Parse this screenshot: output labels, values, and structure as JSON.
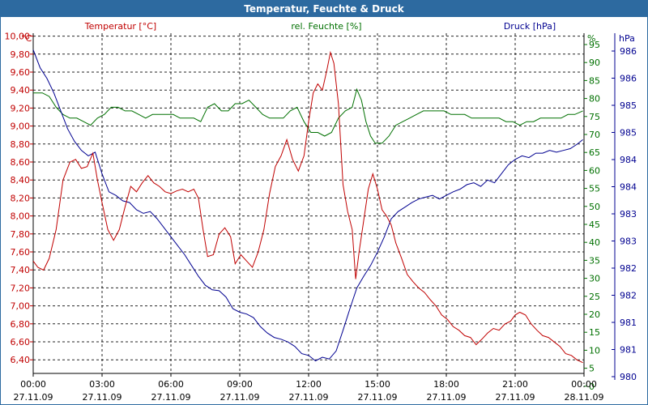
{
  "window": {
    "title": "Temperatur, Feuchte & Druck"
  },
  "chart_data": {
    "type": "line",
    "title": "Temperatur, Feuchte & Druck",
    "grid": true,
    "colors": {
      "temperature": "#c00000",
      "humidity": "#007000",
      "pressure": "#000090",
      "grid": "#000000",
      "title_bg": "#2d6aa0"
    },
    "x_ticks": [
      {
        "time": "00:00",
        "date": "27.11.09"
      },
      {
        "time": "03:00",
        "date": "27.11.09"
      },
      {
        "time": "06:00",
        "date": "27.11.09"
      },
      {
        "time": "09:00",
        "date": "27.11.09"
      },
      {
        "time": "12:00",
        "date": "27.11.09"
      },
      {
        "time": "15:00",
        "date": "27.11.09"
      },
      {
        "time": "18:00",
        "date": "27.11.09"
      },
      {
        "time": "21:00",
        "date": "27.11.09"
      },
      {
        "time": "00:00",
        "date": "28.11.09"
      }
    ],
    "xlim_hours": [
      0,
      24
    ],
    "axes": {
      "temperature": {
        "label": "Temperatur [°C]",
        "unit": "°C",
        "ylim": [
          6.4,
          10.0
        ],
        "ticks": [
          "10,00",
          "9,80",
          "9,60",
          "9,40",
          "9,20",
          "9,00",
          "8,80",
          "8,60",
          "8,40",
          "8,20",
          "8,00",
          "7,80",
          "7,60",
          "7,40",
          "7,20",
          "7,00",
          "6,80",
          "6,60",
          "6,40"
        ]
      },
      "humidity": {
        "label": "rel. Feuchte [%]",
        "unit": "%",
        "ylim": [
          0,
          97.5
        ],
        "ticks": [
          "95",
          "90",
          "85",
          "80",
          "75",
          "70",
          "65",
          "60",
          "55",
          "50",
          "45",
          "40",
          "35",
          "30",
          "25",
          "20",
          "15",
          "10",
          "5",
          "0"
        ]
      },
      "pressure": {
        "label": "Druck [hPa]",
        "unit": "hPa",
        "ticks": [
          "986",
          "986",
          "985",
          "985",
          "984",
          "984",
          "983",
          "983",
          "982",
          "982",
          "981",
          "981",
          "980"
        ]
      }
    },
    "series": [
      {
        "name": "Temperatur [°C]",
        "axis": "temperature",
        "points": [
          [
            0,
            7.65
          ],
          [
            0.2,
            7.58
          ],
          [
            0.45,
            7.55
          ],
          [
            0.7,
            7.68
          ],
          [
            1.0,
            8.0
          ],
          [
            1.3,
            8.55
          ],
          [
            1.6,
            8.75
          ],
          [
            1.85,
            8.78
          ],
          [
            2.1,
            8.68
          ],
          [
            2.35,
            8.7
          ],
          [
            2.6,
            8.85
          ],
          [
            2.8,
            8.55
          ],
          [
            3.0,
            8.3
          ],
          [
            3.25,
            8.0
          ],
          [
            3.5,
            7.88
          ],
          [
            3.75,
            8.0
          ],
          [
            4.0,
            8.25
          ],
          [
            4.25,
            8.48
          ],
          [
            4.5,
            8.42
          ],
          [
            4.75,
            8.52
          ],
          [
            5.0,
            8.6
          ],
          [
            5.25,
            8.52
          ],
          [
            5.5,
            8.48
          ],
          [
            5.75,
            8.42
          ],
          [
            6.0,
            8.4
          ],
          [
            6.25,
            8.43
          ],
          [
            6.5,
            8.45
          ],
          [
            6.75,
            8.42
          ],
          [
            7.0,
            8.45
          ],
          [
            7.2,
            8.35
          ],
          [
            7.4,
            8.0
          ],
          [
            7.6,
            7.7
          ],
          [
            7.85,
            7.72
          ],
          [
            8.1,
            7.95
          ],
          [
            8.35,
            8.02
          ],
          [
            8.6,
            7.92
          ],
          [
            8.8,
            7.62
          ],
          [
            9.05,
            7.72
          ],
          [
            9.3,
            7.65
          ],
          [
            9.55,
            7.58
          ],
          [
            9.8,
            7.75
          ],
          [
            10.05,
            8.0
          ],
          [
            10.3,
            8.4
          ],
          [
            10.55,
            8.7
          ],
          [
            10.8,
            8.82
          ],
          [
            11.05,
            9.0
          ],
          [
            11.3,
            8.78
          ],
          [
            11.55,
            8.65
          ],
          [
            11.8,
            8.82
          ],
          [
            12.0,
            9.2
          ],
          [
            12.2,
            9.52
          ],
          [
            12.4,
            9.62
          ],
          [
            12.6,
            9.55
          ],
          [
            12.8,
            9.78
          ],
          [
            12.95,
            9.97
          ],
          [
            13.1,
            9.85
          ],
          [
            13.3,
            9.4
          ],
          [
            13.5,
            8.5
          ],
          [
            13.7,
            8.2
          ],
          [
            13.9,
            8.0
          ],
          [
            14.05,
            7.45
          ],
          [
            14.2,
            7.75
          ],
          [
            14.4,
            8.1
          ],
          [
            14.6,
            8.45
          ],
          [
            14.8,
            8.62
          ],
          [
            15.0,
            8.45
          ],
          [
            15.2,
            8.22
          ],
          [
            15.4,
            8.15
          ],
          [
            15.6,
            8.05
          ],
          [
            15.8,
            7.85
          ],
          [
            16.05,
            7.68
          ],
          [
            16.3,
            7.5
          ],
          [
            16.55,
            7.42
          ],
          [
            16.8,
            7.35
          ],
          [
            17.05,
            7.3
          ],
          [
            17.3,
            7.22
          ],
          [
            17.55,
            7.15
          ],
          [
            17.8,
            7.05
          ],
          [
            18.05,
            7.0
          ],
          [
            18.3,
            6.92
          ],
          [
            18.55,
            6.88
          ],
          [
            18.8,
            6.82
          ],
          [
            19.05,
            6.8
          ],
          [
            19.3,
            6.72
          ],
          [
            19.55,
            6.78
          ],
          [
            19.8,
            6.85
          ],
          [
            20.05,
            6.9
          ],
          [
            20.3,
            6.88
          ],
          [
            20.55,
            6.95
          ],
          [
            20.8,
            6.98
          ],
          [
            21.0,
            7.05
          ],
          [
            21.2,
            7.08
          ],
          [
            21.45,
            7.05
          ],
          [
            21.7,
            6.95
          ],
          [
            21.95,
            6.88
          ],
          [
            22.2,
            6.82
          ],
          [
            22.45,
            6.8
          ],
          [
            22.7,
            6.75
          ],
          [
            22.95,
            6.7
          ],
          [
            23.2,
            6.62
          ],
          [
            23.45,
            6.6
          ],
          [
            23.7,
            6.55
          ],
          [
            23.95,
            6.52
          ]
        ]
      },
      {
        "name": "rel. Feuchte [%]",
        "axis": "humidity",
        "points": [
          [
            0,
            78
          ],
          [
            0.4,
            78
          ],
          [
            0.7,
            77
          ],
          [
            1.0,
            74
          ],
          [
            1.3,
            72
          ],
          [
            1.6,
            71
          ],
          [
            1.9,
            71
          ],
          [
            2.2,
            70
          ],
          [
            2.5,
            69
          ],
          [
            2.8,
            71
          ],
          [
            3.1,
            72
          ],
          [
            3.4,
            74
          ],
          [
            3.7,
            74
          ],
          [
            4.0,
            73
          ],
          [
            4.3,
            73
          ],
          [
            4.6,
            72
          ],
          [
            4.9,
            71
          ],
          [
            5.2,
            72
          ],
          [
            5.5,
            72
          ],
          [
            5.8,
            72
          ],
          [
            6.1,
            72
          ],
          [
            6.4,
            71
          ],
          [
            6.7,
            71
          ],
          [
            7.0,
            71
          ],
          [
            7.3,
            70
          ],
          [
            7.6,
            74
          ],
          [
            7.9,
            75
          ],
          [
            8.2,
            73
          ],
          [
            8.5,
            73
          ],
          [
            8.8,
            75
          ],
          [
            9.1,
            75
          ],
          [
            9.4,
            76
          ],
          [
            9.7,
            74
          ],
          [
            10.0,
            72
          ],
          [
            10.3,
            71
          ],
          [
            10.6,
            71
          ],
          [
            10.9,
            71
          ],
          [
            11.2,
            73
          ],
          [
            11.5,
            74
          ],
          [
            11.8,
            70
          ],
          [
            12.1,
            67
          ],
          [
            12.4,
            67
          ],
          [
            12.7,
            66
          ],
          [
            13.0,
            67
          ],
          [
            13.3,
            71
          ],
          [
            13.6,
            73
          ],
          [
            13.9,
            74
          ],
          [
            14.1,
            79
          ],
          [
            14.3,
            76
          ],
          [
            14.5,
            70
          ],
          [
            14.7,
            66
          ],
          [
            14.9,
            64
          ],
          [
            15.2,
            64
          ],
          [
            15.5,
            66
          ],
          [
            15.8,
            69
          ],
          [
            16.1,
            70
          ],
          [
            16.4,
            71
          ],
          [
            16.7,
            72
          ],
          [
            17.0,
            73
          ],
          [
            17.3,
            73
          ],
          [
            17.6,
            73
          ],
          [
            17.9,
            73
          ],
          [
            18.2,
            72
          ],
          [
            18.5,
            72
          ],
          [
            18.8,
            72
          ],
          [
            19.1,
            71
          ],
          [
            19.4,
            71
          ],
          [
            19.7,
            71
          ],
          [
            20.0,
            71
          ],
          [
            20.3,
            71
          ],
          [
            20.6,
            70
          ],
          [
            20.9,
            70
          ],
          [
            21.2,
            69
          ],
          [
            21.5,
            70
          ],
          [
            21.8,
            70
          ],
          [
            22.1,
            71
          ],
          [
            22.4,
            71
          ],
          [
            22.7,
            71
          ],
          [
            23.0,
            71
          ],
          [
            23.3,
            72
          ],
          [
            23.6,
            72
          ],
          [
            23.95,
            73
          ]
        ]
      },
      {
        "name": "Druck [hPa]",
        "axis": "pressure",
        "points": [
          [
            0,
            10.0
          ],
          [
            0.3,
            9.8
          ],
          [
            0.6,
            9.68
          ],
          [
            0.9,
            9.52
          ],
          [
            1.2,
            9.32
          ],
          [
            1.5,
            9.12
          ],
          [
            1.8,
            8.98
          ],
          [
            2.1,
            8.88
          ],
          [
            2.4,
            8.82
          ],
          [
            2.7,
            8.86
          ],
          [
            3.0,
            8.62
          ],
          [
            3.3,
            8.42
          ],
          [
            3.6,
            8.38
          ],
          [
            3.9,
            8.32
          ],
          [
            4.2,
            8.3
          ],
          [
            4.5,
            8.22
          ],
          [
            4.8,
            8.18
          ],
          [
            5.1,
            8.2
          ],
          [
            5.4,
            8.12
          ],
          [
            5.7,
            8.02
          ],
          [
            6.0,
            7.92
          ],
          [
            6.3,
            7.82
          ],
          [
            6.6,
            7.72
          ],
          [
            6.9,
            7.6
          ],
          [
            7.2,
            7.48
          ],
          [
            7.5,
            7.38
          ],
          [
            7.8,
            7.33
          ],
          [
            8.1,
            7.32
          ],
          [
            8.4,
            7.25
          ],
          [
            8.7,
            7.12
          ],
          [
            9.0,
            7.08
          ],
          [
            9.3,
            7.06
          ],
          [
            9.6,
            7.02
          ],
          [
            9.9,
            6.92
          ],
          [
            10.2,
            6.85
          ],
          [
            10.5,
            6.8
          ],
          [
            10.8,
            6.78
          ],
          [
            11.1,
            6.75
          ],
          [
            11.4,
            6.7
          ],
          [
            11.7,
            6.62
          ],
          [
            12.0,
            6.6
          ],
          [
            12.3,
            6.54
          ],
          [
            12.6,
            6.58
          ],
          [
            12.9,
            6.56
          ],
          [
            13.2,
            6.65
          ],
          [
            13.5,
            6.88
          ],
          [
            13.8,
            7.12
          ],
          [
            14.1,
            7.35
          ],
          [
            14.4,
            7.48
          ],
          [
            14.7,
            7.6
          ],
          [
            15.0,
            7.75
          ],
          [
            15.3,
            7.92
          ],
          [
            15.6,
            8.12
          ],
          [
            15.9,
            8.2
          ],
          [
            16.2,
            8.25
          ],
          [
            16.5,
            8.3
          ],
          [
            16.8,
            8.34
          ],
          [
            17.1,
            8.36
          ],
          [
            17.4,
            8.38
          ],
          [
            17.7,
            8.34
          ],
          [
            18.0,
            8.38
          ],
          [
            18.3,
            8.42
          ],
          [
            18.6,
            8.45
          ],
          [
            18.9,
            8.5
          ],
          [
            19.2,
            8.52
          ],
          [
            19.5,
            8.48
          ],
          [
            19.8,
            8.55
          ],
          [
            20.1,
            8.52
          ],
          [
            20.4,
            8.62
          ],
          [
            20.7,
            8.72
          ],
          [
            21.0,
            8.78
          ],
          [
            21.3,
            8.82
          ],
          [
            21.6,
            8.8
          ],
          [
            21.9,
            8.85
          ],
          [
            22.2,
            8.85
          ],
          [
            22.5,
            8.88
          ],
          [
            22.8,
            8.86
          ],
          [
            23.1,
            8.88
          ],
          [
            23.4,
            8.9
          ],
          [
            23.7,
            8.95
          ],
          [
            23.95,
            9.0
          ]
        ]
      }
    ]
  }
}
